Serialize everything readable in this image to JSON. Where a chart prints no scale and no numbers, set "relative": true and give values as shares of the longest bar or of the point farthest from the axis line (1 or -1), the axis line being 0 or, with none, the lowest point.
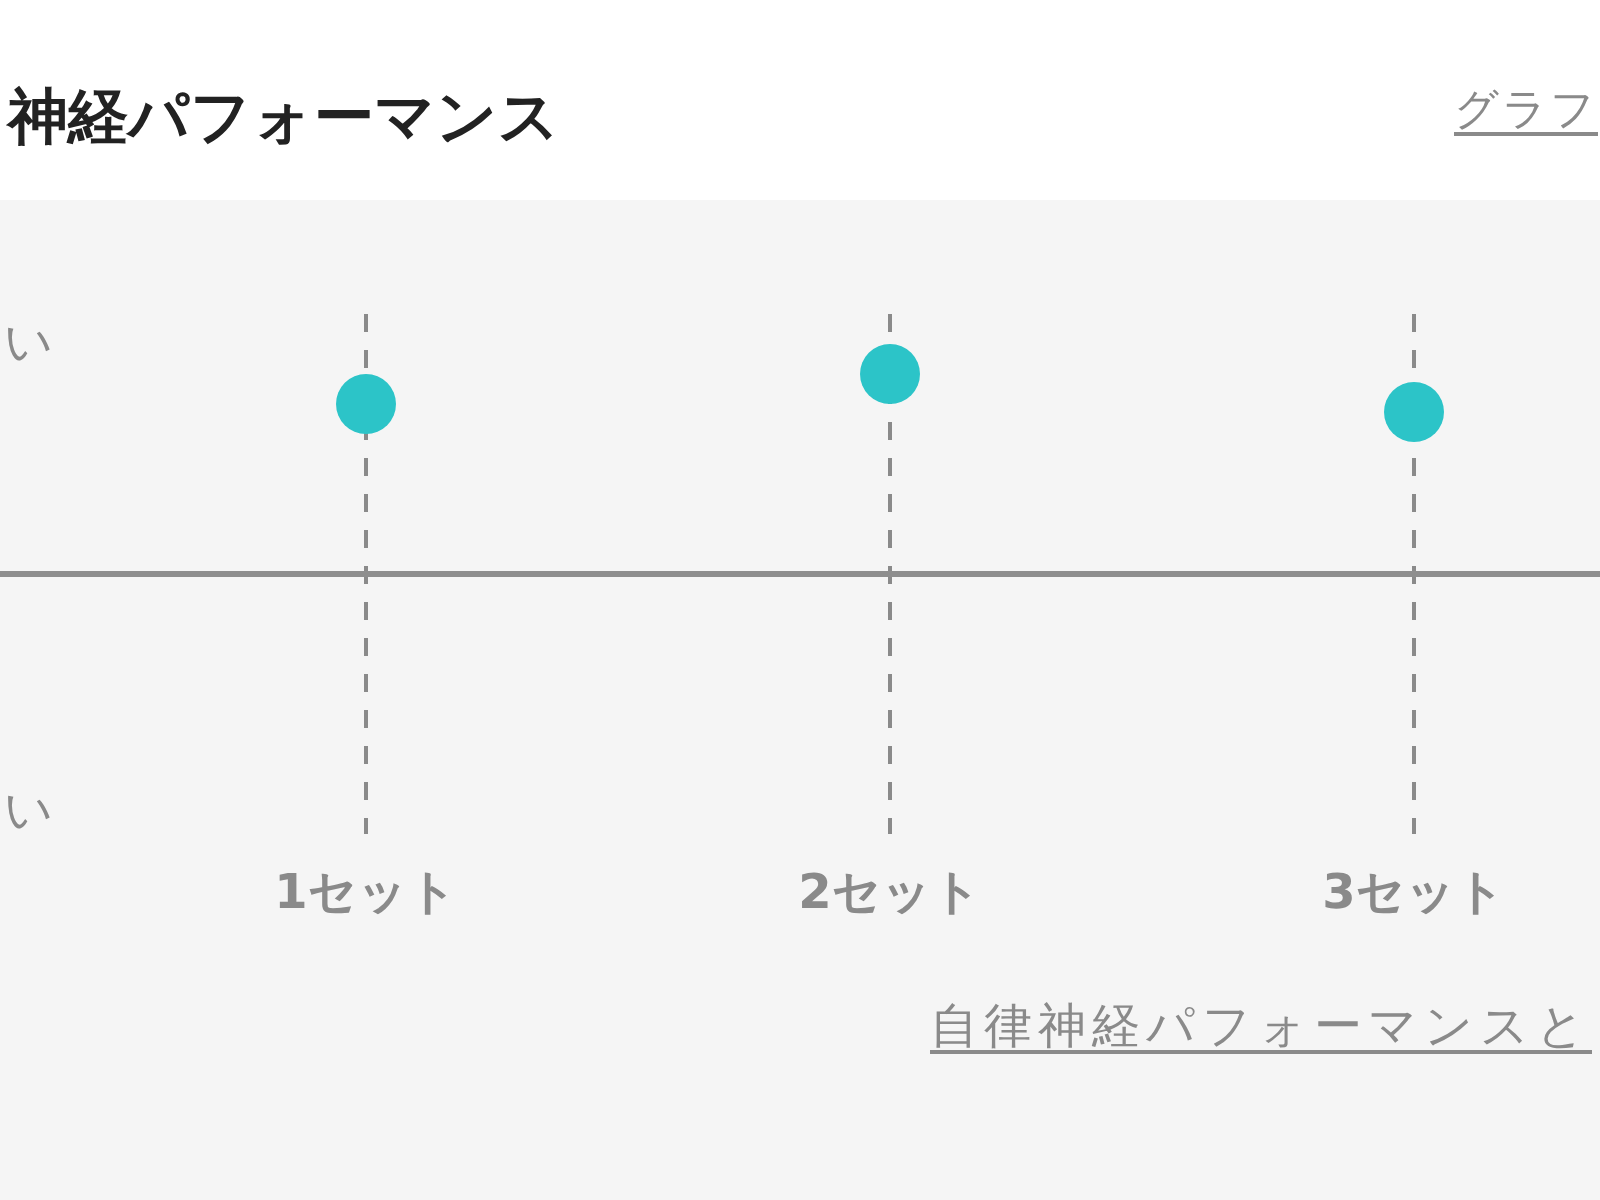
{
  "chart_data": {
    "type": "scatter",
    "title": "神経パフォーマンス",
    "categories": [
      "1セット",
      "2セット",
      "3セット"
    ],
    "values": [
      0.85,
      1,
      0.81
    ],
    "color": "#2cc4c8",
    "relative": true,
    "grid": "x",
    "marker": "circle",
    "annotations": [
      "グラフ",
      "い",
      "い",
      "自律神経パフォーマンスと"
    ]
  }
}
